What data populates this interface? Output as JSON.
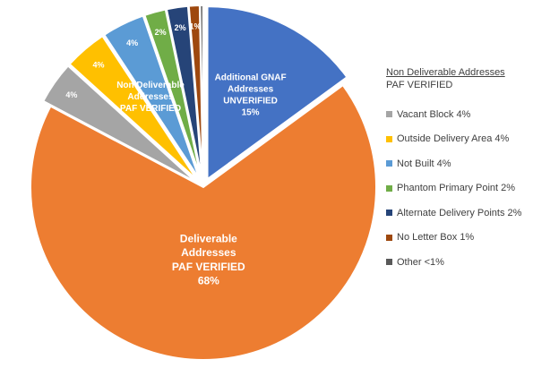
{
  "chart_data": {
    "type": "pie",
    "title": "",
    "slices": [
      {
        "name": "Additional GNAF Addresses UNVERIFIED",
        "value": 15,
        "color": "#4472C4",
        "exploded": true,
        "label_lines": [
          "Additional GNAF",
          "Addresses",
          "UNVERIFIED",
          "15%"
        ]
      },
      {
        "name": "Deliverable Addresses PAF VERIFIED",
        "value": 68,
        "color": "#ED7D31",
        "exploded": false,
        "label_lines": [
          "Deliverable",
          "Addresses",
          "PAF VERIFIED",
          "68%"
        ]
      },
      {
        "name": "Vacant Block",
        "value": 4,
        "color": "#A5A5A5",
        "exploded": true,
        "label_lines": [
          "4%"
        ]
      },
      {
        "name": "Outside Delivery Area",
        "value": 4,
        "color": "#FFC000",
        "exploded": true,
        "label_lines": [
          "4%"
        ]
      },
      {
        "name": "Not Built",
        "value": 4,
        "color": "#5B9BD5",
        "exploded": true,
        "label_lines": [
          "4%"
        ]
      },
      {
        "name": "Phantom Primary Point",
        "value": 2,
        "color": "#70AD47",
        "exploded": true,
        "label_lines": [
          "2%"
        ]
      },
      {
        "name": "Alternate Delivery Points",
        "value": 2,
        "color": "#264478",
        "exploded": true,
        "label_lines": [
          "2%"
        ]
      },
      {
        "name": "No Letter Box",
        "value": 1,
        "color": "#9E480E",
        "exploded": true,
        "label_lines": [
          "1%"
        ]
      },
      {
        "name": "Other",
        "value": 0.3,
        "color": "#636363",
        "exploded": true,
        "label_lines": []
      }
    ],
    "group_label_lines": [
      "Non Deliverable",
      "Addresses",
      "PAF VERIFIED"
    ],
    "legend_position": "right",
    "legend_title": "Non Deliverable Addresses",
    "legend_subtitle": "PAF VERIFIED",
    "legend_items": [
      {
        "text": "Vacant Block 4%",
        "color": "#A5A5A5"
      },
      {
        "text": "Outside Delivery Area 4%",
        "color": "#FFC000"
      },
      {
        "text": "Not Built 4%",
        "color": "#5B9BD5"
      },
      {
        "text": "Phantom Primary Point 2%",
        "color": "#70AD47"
      },
      {
        "text": "Alternate Delivery Points 2%",
        "color": "#264478"
      },
      {
        "text": "No Letter Box 1%",
        "color": "#9E480E"
      },
      {
        "text": "Other <1%",
        "color": "#595959"
      }
    ]
  }
}
